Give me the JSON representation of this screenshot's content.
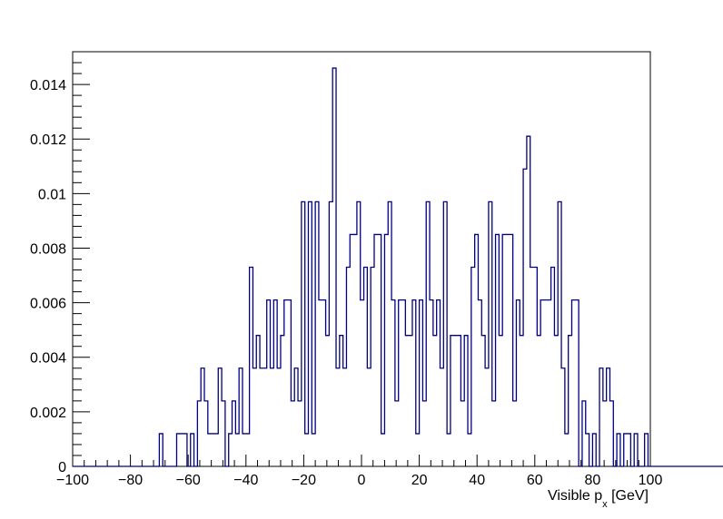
{
  "chart_data": {
    "type": "histogram",
    "xlabel": "Visible p",
    "xlabel_subscript": "x",
    "xlabel_unit": "[GeV]",
    "ylabel": "",
    "xlim": [
      -100,
      100
    ],
    "ylim": [
      0,
      0.0152
    ],
    "grid": false,
    "x_ticks": [
      "−100",
      "−80",
      "−60",
      "−40",
      "−20",
      "0",
      "20",
      "40",
      "60",
      "80",
      "100"
    ],
    "y_ticks": [
      "0",
      "0.002",
      "0.004",
      "0.006",
      "0.008",
      "0.01",
      "0.012",
      "0.014"
    ],
    "line_color": "#000080",
    "bins": {
      "xmin": -100,
      "bin_width": 1.2,
      "values": [
        0,
        0,
        0,
        0,
        0,
        0,
        0,
        0,
        0,
        0,
        0,
        0,
        0,
        0,
        0,
        0,
        0,
        0,
        0,
        0,
        0,
        0,
        0,
        0,
        0,
        0.0012,
        0,
        0,
        0,
        0,
        0.0012,
        0.0012,
        0.0012,
        0,
        0.0012,
        0,
        0.0024,
        0.0036,
        0.0024,
        0.0012,
        0.0012,
        0.0012,
        0.0036,
        0.0024,
        0,
        0.0012,
        0.0024,
        0.0012,
        0.0036,
        0.0012,
        0.0012,
        0.0073,
        0.0036,
        0.0048,
        0.0036,
        0.0036,
        0.0061,
        0.0036,
        0.0061,
        0.0036,
        0.0048,
        0.0061,
        0.0061,
        0.0024,
        0.0036,
        0.0024,
        0.0097,
        0.0012,
        0.0097,
        0.0012,
        0.0097,
        0.0061,
        0.0061,
        0.0048,
        0.0097,
        0.0146,
        0.0036,
        0.0048,
        0.0036,
        0.0073,
        0.0085,
        0.0085,
        0.0097,
        0.0061,
        0.0073,
        0.0036,
        0.0073,
        0.0085,
        0.0085,
        0.0012,
        0.0085,
        0.0097,
        0.0061,
        0.0024,
        0.0061,
        0.0061,
        0.0048,
        0.0048,
        0.0061,
        0.0012,
        0.0061,
        0.0024,
        0.0097,
        0.0061,
        0.0048,
        0.0061,
        0.0036,
        0.0097,
        0.0012,
        0.0048,
        0.0048,
        0.0048,
        0.0024,
        0.0048,
        0.0012,
        0.0073,
        0.0085,
        0.0061,
        0.0048,
        0.0036,
        0.0097,
        0.0024,
        0.0085,
        0.0048,
        0.0085,
        0.0085,
        0.0085,
        0.0024,
        0.0061,
        0.0048,
        0.0109,
        0.0121,
        0.0073,
        0.0073,
        0.0048,
        0.0061,
        0.0061,
        0.0061,
        0.0073,
        0.0048,
        0.0097,
        0.0036,
        0.0012,
        0.0048,
        0.0061,
        0.0061,
        0,
        0.0024,
        0.0012,
        0,
        0.0012,
        0,
        0.0036,
        0.0024,
        0.0036,
        0.0024,
        0,
        0.0012,
        0,
        0.0012,
        0.0012,
        0,
        0.0012,
        0,
        0,
        0.0012,
        0,
        0,
        0,
        0,
        0,
        0,
        0,
        0,
        0,
        0,
        0,
        0,
        0,
        0,
        0,
        0,
        0,
        0,
        0,
        0,
        0,
        0,
        0,
        0,
        0,
        0,
        0,
        0,
        0,
        0,
        0
      ]
    }
  }
}
